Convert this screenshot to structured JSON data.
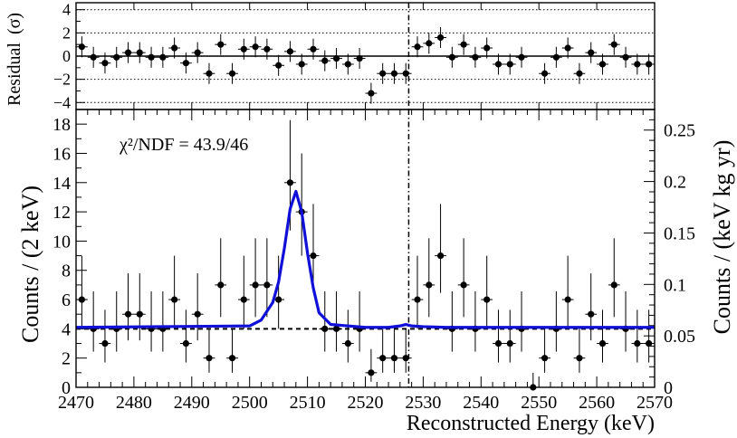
{
  "chart_data": [
    {
      "type": "scatter",
      "panel": "residual",
      "ylabel": "Residual",
      "ylabel_unit": "(σ)",
      "xlim": [
        2470,
        2570
      ],
      "ylim": [
        -4.6,
        4.6
      ],
      "ytick_labels": [
        "4",
        "2",
        "0",
        "−2",
        "−4"
      ],
      "ytick_values": [
        4,
        2,
        0,
        -2,
        -4
      ],
      "reference_lines_dotted": [
        -4,
        -2,
        2,
        4
      ],
      "reference_line_solid": 0,
      "vertical_line_dashdot_x": 2527.5,
      "series": [
        {
          "x": [
            2471,
            2473,
            2475,
            2477,
            2479,
            2481,
            2483,
            2485,
            2487,
            2489,
            2491,
            2493,
            2495,
            2497,
            2499,
            2501,
            2503,
            2505,
            2507,
            2509,
            2511,
            2513,
            2515,
            2517,
            2519,
            2521,
            2523,
            2525,
            2527,
            2529,
            2531,
            2533,
            2535,
            2537,
            2539,
            2541,
            2543,
            2545,
            2547,
            2551,
            2553,
            2555,
            2557,
            2559,
            2561,
            2563,
            2565,
            2567,
            2569
          ],
          "y": [
            0.8,
            -0.1,
            -0.6,
            -0.1,
            0.3,
            0.3,
            -0.1,
            -0.1,
            0.7,
            -0.6,
            0.3,
            -1.5,
            1.0,
            -1.5,
            0.6,
            0.8,
            0.6,
            -0.8,
            0.4,
            -0.7,
            0.6,
            -0.4,
            -0.2,
            -0.7,
            -0.2,
            -3.2,
            -1.5,
            -1.5,
            -1.5,
            0.8,
            1.1,
            1.6,
            -0.1,
            1.0,
            -0.1,
            0.7,
            -0.7,
            -0.7,
            -0.1,
            -1.5,
            -0.1,
            0.7,
            -1.5,
            0.3,
            -0.7,
            1.0,
            -0.1,
            -0.7,
            -0.7
          ],
          "yerr": [
            0.9,
            0.9,
            0.9,
            0.9,
            0.9,
            0.9,
            0.9,
            0.9,
            0.9,
            0.9,
            0.9,
            0.9,
            0.9,
            0.9,
            0.9,
            0.9,
            0.9,
            0.9,
            0.9,
            0.9,
            0.9,
            0.9,
            0.9,
            0.9,
            0.9,
            0.9,
            0.9,
            0.9,
            0.9,
            0.9,
            0.9,
            0.9,
            0.9,
            0.9,
            0.9,
            0.9,
            0.9,
            0.9,
            0.9,
            0.9,
            0.9,
            0.9,
            0.9,
            0.9,
            0.9,
            0.9,
            0.9,
            0.9,
            0.9
          ]
        }
      ]
    },
    {
      "type": "scatter",
      "panel": "spectrum",
      "xlabel": "Reconstructed Energy (keV)",
      "ylabel": "Counts / (2 keV)",
      "y2label": "Counts / (keV kg yr)",
      "annotation": "χ²/NDF = 43.9/46",
      "xlim": [
        2470,
        2570
      ],
      "ylim": [
        0,
        19
      ],
      "y2lim": [
        0,
        0.27
      ],
      "xtick_labels": [
        "2470",
        "2480",
        "2490",
        "2500",
        "2510",
        "2520",
        "2530",
        "2540",
        "2550",
        "2560",
        "2570"
      ],
      "xtick_values": [
        2470,
        2480,
        2490,
        2500,
        2510,
        2520,
        2530,
        2540,
        2550,
        2560,
        2570
      ],
      "ytick_labels": [
        "0",
        "2",
        "4",
        "6",
        "8",
        "10",
        "12",
        "14",
        "16",
        "18"
      ],
      "ytick_values": [
        0,
        2,
        4,
        6,
        8,
        10,
        12,
        14,
        16,
        18
      ],
      "y2tick_labels": [
        "0",
        "0.05",
        "0.1",
        "0.15",
        "0.2",
        "0.25"
      ],
      "y2tick_values": [
        0,
        0.05,
        0.1,
        0.15,
        0.2,
        0.25
      ],
      "vertical_line_dashdot_x": 2527.5,
      "series": [
        {
          "x": [
            2471,
            2473,
            2475,
            2477,
            2479,
            2481,
            2483,
            2485,
            2487,
            2489,
            2491,
            2493,
            2495,
            2497,
            2499,
            2501,
            2503,
            2505,
            2507,
            2509,
            2511,
            2513,
            2515,
            2517,
            2519,
            2521,
            2523,
            2525,
            2527,
            2529,
            2531,
            2533,
            2535,
            2537,
            2539,
            2541,
            2543,
            2545,
            2547,
            2549,
            2551,
            2553,
            2555,
            2557,
            2559,
            2561,
            2563,
            2565,
            2567,
            2569
          ],
          "y": [
            6,
            4,
            3,
            4,
            5,
            5,
            4,
            4,
            6,
            3,
            5,
            2,
            7,
            2,
            6,
            7,
            7,
            6,
            14,
            12,
            9,
            4,
            4,
            3,
            4,
            1,
            2,
            2,
            2,
            6,
            7,
            9,
            4,
            7,
            4,
            6,
            3,
            3,
            4,
            0,
            2,
            4,
            6,
            2,
            5,
            3,
            7,
            4,
            3,
            3
          ]
        },
        {
          "name": "fit",
          "color": "#1010d8",
          "style": "solid",
          "x": [
            2470,
            2500,
            2502,
            2504,
            2505,
            2506,
            2507,
            2508,
            2509,
            2510,
            2511,
            2512,
            2514,
            2520,
            2524,
            2526,
            2527,
            2528,
            2530,
            2534,
            2570
          ],
          "y": [
            4.1,
            4.2,
            4.6,
            5.8,
            7.2,
            9.5,
            12.2,
            13.4,
            12.0,
            9.2,
            6.8,
            5.1,
            4.3,
            4.1,
            4.1,
            4.2,
            4.3,
            4.2,
            4.15,
            4.1,
            4.1
          ]
        },
        {
          "name": "background",
          "color": "#000000",
          "style": "dashed",
          "x": [
            2470,
            2570
          ],
          "y": [
            4.0,
            4.0
          ]
        }
      ]
    }
  ]
}
